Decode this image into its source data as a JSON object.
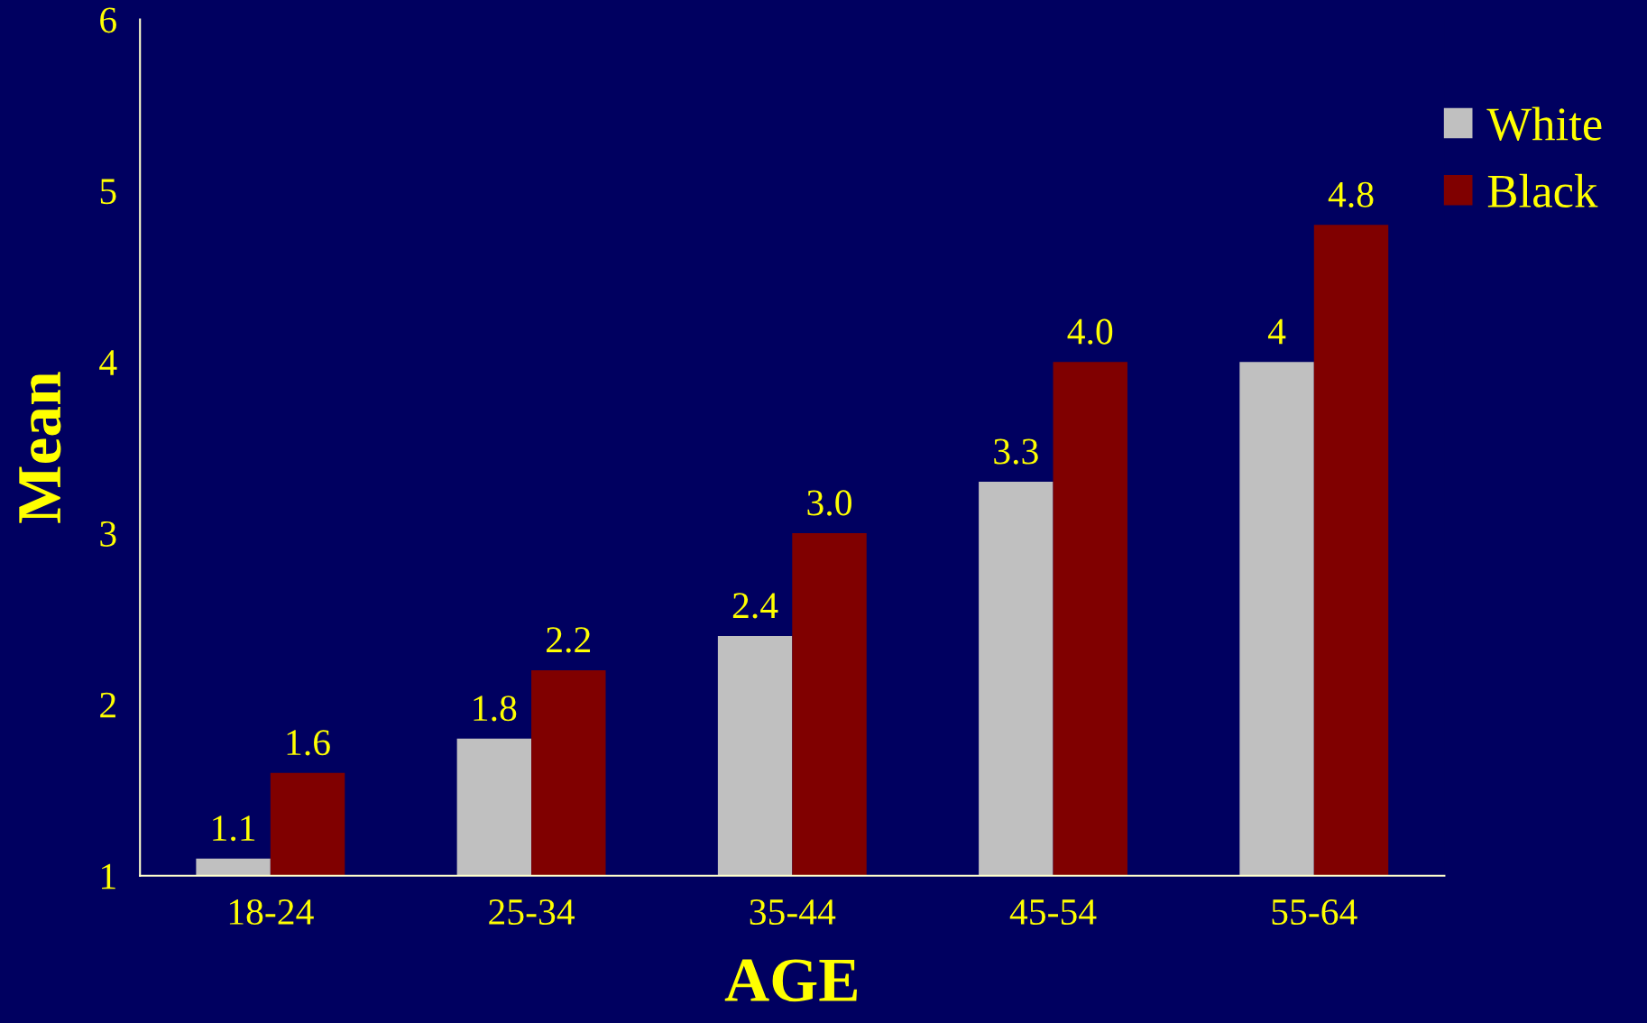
{
  "chart_data": {
    "type": "bar",
    "xlabel": "AGE",
    "ylabel": "Mean",
    "categories": [
      "18-24",
      "25-34",
      "35-44",
      "45-54",
      "55-64"
    ],
    "series": [
      {
        "name": "White",
        "color": "#c0c0c0",
        "values": [
          1.1,
          1.8,
          2.4,
          3.3,
          4
        ],
        "value_labels": [
          "1.1",
          "1.8",
          "2.4",
          "3.3",
          "4"
        ]
      },
      {
        "name": "Black",
        "color": "#800000",
        "values": [
          1.6,
          2.2,
          3.0,
          4.0,
          4.8
        ],
        "value_labels": [
          "1.6",
          "2.2",
          "3.0",
          "4.0",
          "4.8"
        ]
      }
    ],
    "ylim": [
      1,
      6
    ],
    "yticks": [
      1,
      2,
      3,
      4,
      5,
      6
    ],
    "grid": false,
    "legend": "top right"
  }
}
